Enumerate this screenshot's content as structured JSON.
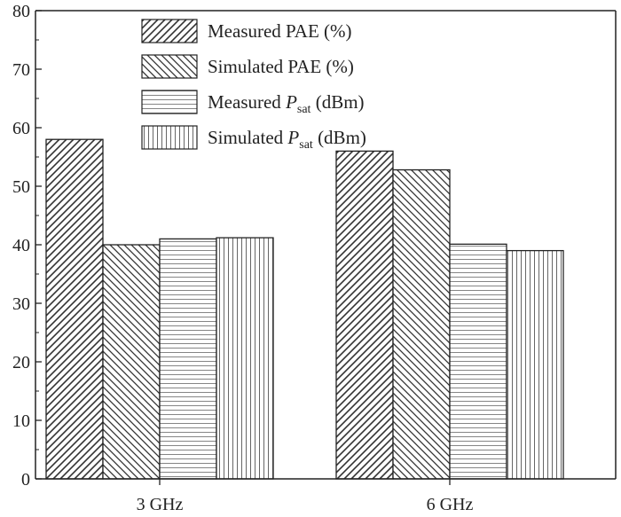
{
  "chart_data": {
    "type": "bar",
    "categories": [
      "3 GHz",
      "6 GHz"
    ],
    "series": [
      {
        "name": "Measured PAE (%)",
        "label_main": "Measured PAE (%)",
        "values": [
          58.0,
          56.0
        ],
        "pattern": "diag-right"
      },
      {
        "name": "Simulated PAE (%)",
        "label_main": "Simulated PAE (%)",
        "values": [
          40.0,
          52.8
        ],
        "pattern": "diag-left"
      },
      {
        "name": "Measured Psat (dBm)",
        "label_pre": "Measured ",
        "label_var": "P",
        "label_sub": "sat",
        "label_post": " (dBm)",
        "values": [
          41.0,
          40.1
        ],
        "pattern": "horizontal"
      },
      {
        "name": "Simulated Psat (dBm)",
        "label_pre": "Simulated ",
        "label_var": "P",
        "label_sub": "sat",
        "label_post": " (dBm)",
        "values": [
          41.2,
          39.0
        ],
        "pattern": "vertical"
      }
    ],
    "xlabel": "",
    "ylabel": "",
    "ylim": [
      0,
      80
    ],
    "yticks": [
      0,
      10,
      20,
      30,
      40,
      50,
      60,
      70,
      80
    ],
    "grid": false,
    "legend_position": "top-center"
  }
}
